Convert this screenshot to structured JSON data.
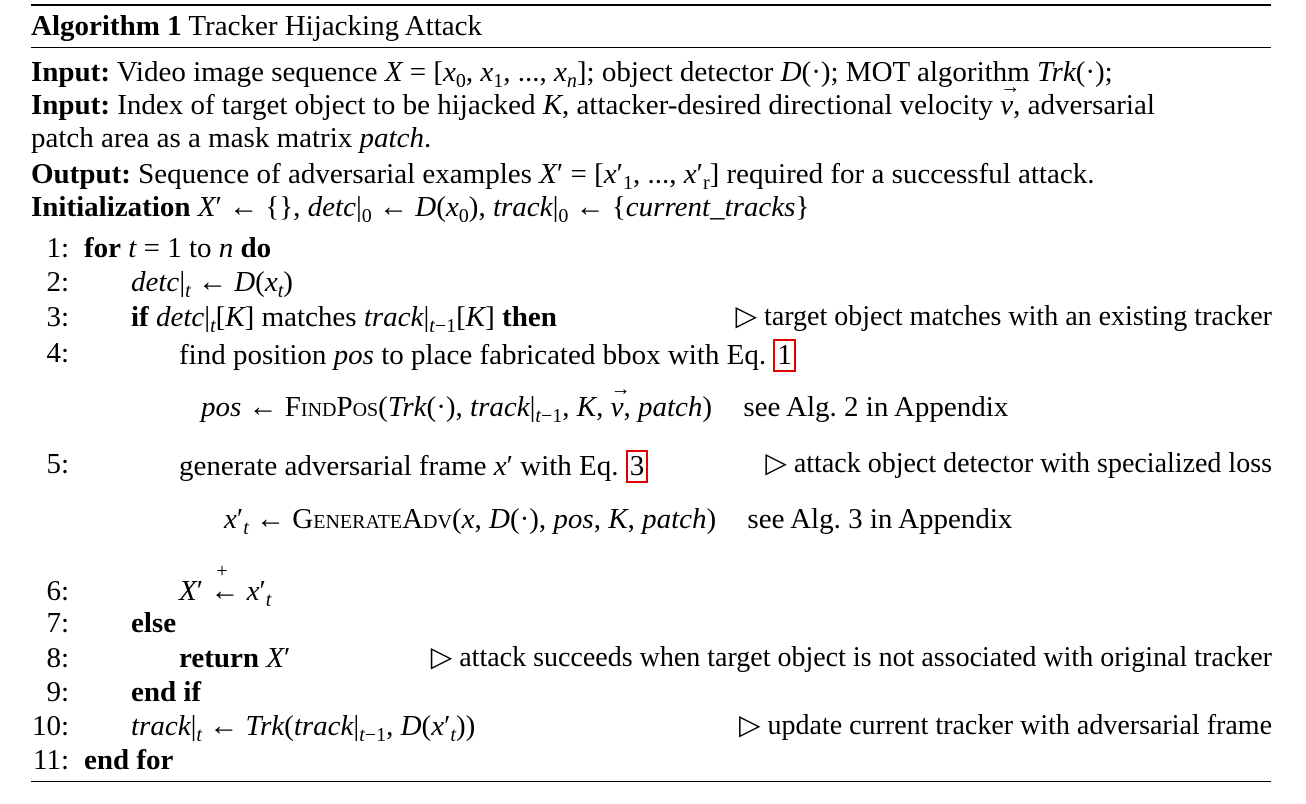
{
  "algorithm": {
    "label": "Algorithm 1",
    "title": "Tracker Hijacking Attack"
  },
  "header": {
    "input1_label": "Input:",
    "input1_text": "Video image sequence X = [x0, x1, ..., xn]; object detector D(·); MOT algorithm Trk(·);",
    "input2_label": "Input:",
    "input2_text_line1": "Index of target object to be hijacked K, attacker-desired directional velocity v, adversarial",
    "input2_text_line2": "patch area as a mask matrix patch.",
    "output_label": "Output:",
    "output_text": "Sequence of adversarial examples X′ = [x′1, ..., x′r] required for a successful attack.",
    "init_label": "Initialization",
    "init_text": "X′ ← {}, detc|0 ← D(x0), track|0 ← {current_tracks}"
  },
  "steps": [
    {
      "num": "1:",
      "keyword": "for",
      "text": "t = 1 to n",
      "keyword2": "do"
    },
    {
      "num": "2:",
      "text": "detc|t ← D(xt)"
    },
    {
      "num": "3:",
      "keyword": "if",
      "text": "detc|t[K] matches track|t−1[K]",
      "keyword2": "then",
      "comment": "▷ target object matches with an existing tracker"
    },
    {
      "num": "4:",
      "text": "find position pos to place fabricated bbox with Eq.",
      "ref": "1"
    },
    {
      "eq": "pos ← FindPos(Trk(·), track|t−1, K, v, patch)",
      "eq_note": "see Alg. 2 in Appendix"
    },
    {
      "num": "5:",
      "text": "generate adversarial frame x′ with Eq.",
      "ref": "3",
      "comment": "▷ attack object detector with specialized loss"
    },
    {
      "eq": "x′t ← GenerateAdv(x, D(·), pos, K, patch)",
      "eq_note": "see Alg. 3 in Appendix"
    },
    {
      "num": "6:",
      "text": "X′ ←+ x′t"
    },
    {
      "num": "7:",
      "keyword": "else"
    },
    {
      "num": "8:",
      "keyword": "return",
      "text": "X′",
      "comment": "▷ attack succeeds when target object is not associated with original tracker"
    },
    {
      "num": "9:",
      "keyword": "end if"
    },
    {
      "num": "10:",
      "text": "track|t ← Trk(track|t−1, D(x′t))",
      "comment": "▷ update current tracker with adversarial frame"
    },
    {
      "num": "11:",
      "keyword": "end for"
    }
  ]
}
